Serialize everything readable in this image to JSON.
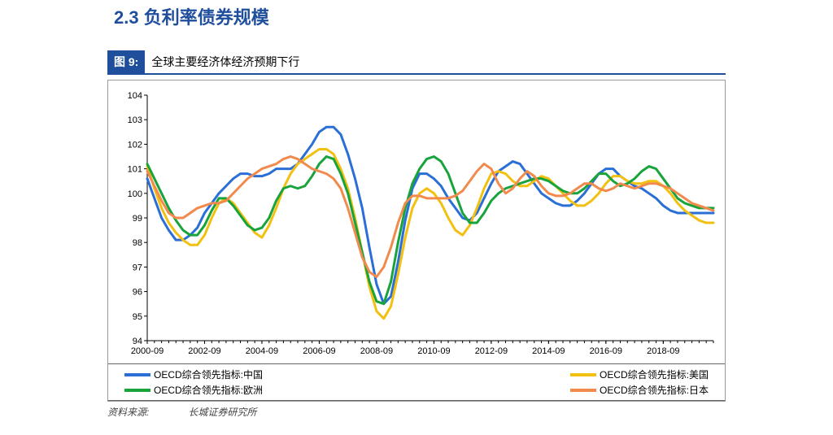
{
  "section": {
    "number": "2.3",
    "title": "负利率债券规模"
  },
  "figure": {
    "tag": "图 9:",
    "title": "全球主要经济体经济预期下行"
  },
  "source": {
    "label": "资料来源:",
    "value": "长城证券研究所"
  },
  "chart": {
    "type": "line",
    "background_color": "#ffffff",
    "axis_color": "#000000",
    "border_color": "#999999",
    "ylim": [
      94,
      104
    ],
    "ytick_step": 1,
    "yticks": [
      94,
      95,
      96,
      97,
      98,
      99,
      100,
      101,
      102,
      103,
      104
    ],
    "x_labels": [
      "2000-09",
      "2002-09",
      "2004-09",
      "2006-09",
      "2008-09",
      "2010-09",
      "2012-09",
      "2014-09",
      "2016-09",
      "2018-09"
    ],
    "x_label_indices": [
      0,
      8,
      16,
      24,
      32,
      40,
      48,
      56,
      64,
      72
    ],
    "x_count": 80,
    "line_width": 3,
    "label_fontsize": 11,
    "series": [
      {
        "name": "OECD综合领先指标:中国",
        "color": "#2a6fd6",
        "data": [
          100.6,
          99.8,
          99.0,
          98.5,
          98.1,
          98.1,
          98.3,
          98.6,
          99.2,
          99.6,
          100.0,
          100.3,
          100.6,
          100.8,
          100.8,
          100.7,
          100.7,
          100.8,
          101.0,
          101.0,
          101.0,
          101.2,
          101.6,
          102.0,
          102.5,
          102.7,
          102.7,
          102.4,
          101.6,
          100.6,
          99.4,
          97.8,
          96.3,
          95.5,
          95.8,
          97.2,
          98.9,
          100.2,
          100.8,
          100.8,
          100.6,
          100.3,
          99.8,
          99.4,
          99.0,
          98.9,
          99.2,
          99.8,
          100.4,
          100.9,
          101.1,
          101.3,
          101.2,
          100.8,
          100.4,
          100.0,
          99.8,
          99.6,
          99.5,
          99.5,
          99.7,
          100.0,
          100.4,
          100.8,
          101.0,
          101.0,
          100.7,
          100.5,
          100.3,
          100.2,
          100.0,
          99.8,
          99.5,
          99.3,
          99.2,
          99.2,
          99.2,
          99.2,
          99.2,
          99.2
        ]
      },
      {
        "name": "OECD综合领先指标:美国",
        "color": "#f2c010",
        "data": [
          101.1,
          100.2,
          99.4,
          98.8,
          98.4,
          98.1,
          97.9,
          97.9,
          98.3,
          99.0,
          99.6,
          99.8,
          99.6,
          99.2,
          98.8,
          98.4,
          98.2,
          98.7,
          99.4,
          100.2,
          100.8,
          101.2,
          101.4,
          101.6,
          101.8,
          101.8,
          101.6,
          101.0,
          100.2,
          99.0,
          97.6,
          96.2,
          95.2,
          94.9,
          95.4,
          96.7,
          98.2,
          99.4,
          100.0,
          100.2,
          100.0,
          99.6,
          99.0,
          98.5,
          98.3,
          98.7,
          99.4,
          100.2,
          100.8,
          100.9,
          100.8,
          100.5,
          100.3,
          100.3,
          100.5,
          100.7,
          100.6,
          100.3,
          100.0,
          99.7,
          99.5,
          99.5,
          99.7,
          100.0,
          100.4,
          100.7,
          100.7,
          100.5,
          100.4,
          100.4,
          100.5,
          100.5,
          100.3,
          100.0,
          99.6,
          99.3,
          99.1,
          98.9,
          98.8,
          98.8
        ]
      },
      {
        "name": "OECD综合领先指标:欧洲",
        "color": "#19a33b",
        "data": [
          101.2,
          100.6,
          100.0,
          99.4,
          98.9,
          98.5,
          98.3,
          98.3,
          98.7,
          99.3,
          99.8,
          99.8,
          99.5,
          99.1,
          98.7,
          98.5,
          98.6,
          99.0,
          99.7,
          100.2,
          100.3,
          100.2,
          100.3,
          100.7,
          101.2,
          101.5,
          101.4,
          100.8,
          100.0,
          98.8,
          97.6,
          96.4,
          95.6,
          95.5,
          96.4,
          98.0,
          99.4,
          100.4,
          101.0,
          101.4,
          101.5,
          101.3,
          100.8,
          100.0,
          99.2,
          98.8,
          98.8,
          99.2,
          99.7,
          100.0,
          100.2,
          100.3,
          100.4,
          100.5,
          100.6,
          100.6,
          100.5,
          100.3,
          100.1,
          100.0,
          100.0,
          100.2,
          100.5,
          100.8,
          100.8,
          100.5,
          100.3,
          100.4,
          100.6,
          100.9,
          101.1,
          101.0,
          100.6,
          100.2,
          99.8,
          99.6,
          99.5,
          99.4,
          99.4,
          99.4
        ]
      },
      {
        "name": "OECD综合领先指标:日本",
        "color": "#f18a4c",
        "data": [
          100.9,
          100.3,
          99.7,
          99.2,
          99.0,
          99.0,
          99.2,
          99.4,
          99.5,
          99.6,
          99.6,
          99.7,
          100.0,
          100.3,
          100.6,
          100.8,
          101.0,
          101.1,
          101.2,
          101.4,
          101.5,
          101.4,
          101.2,
          101.0,
          100.9,
          100.8,
          100.6,
          100.2,
          99.4,
          98.4,
          97.4,
          96.8,
          96.6,
          97.0,
          97.8,
          98.8,
          99.6,
          99.9,
          99.9,
          99.8,
          99.8,
          99.8,
          99.8,
          99.9,
          100.1,
          100.5,
          100.9,
          101.2,
          101.0,
          100.4,
          100.0,
          100.2,
          100.6,
          100.9,
          100.7,
          100.3,
          100.0,
          99.9,
          99.9,
          100.0,
          100.2,
          100.4,
          100.4,
          100.2,
          100.1,
          100.2,
          100.4,
          100.3,
          100.2,
          100.3,
          100.4,
          100.4,
          100.3,
          100.2,
          100.0,
          99.8,
          99.6,
          99.5,
          99.4,
          99.3
        ]
      }
    ],
    "legend": {
      "left": [
        "OECD综合领先指标:中国",
        "OECD综合领先指标:欧洲"
      ],
      "right": [
        "OECD综合领先指标:美国",
        "OECD综合领先指标:日本"
      ]
    }
  }
}
